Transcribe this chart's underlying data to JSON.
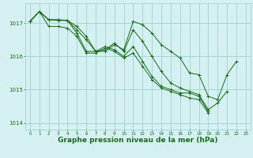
{
  "background_color": "#d4f0f0",
  "grid_color": "#a0d0d0",
  "line_color": "#1a6b1a",
  "marker_color": "#1a6b1a",
  "xlabel": "Graphe pression niveau de la mer (hPa)",
  "xlabel_fontsize": 6.5,
  "ylim": [
    1013.8,
    1017.6
  ],
  "xlim": [
    -0.5,
    23.5
  ],
  "yticks": [
    1014,
    1015,
    1016,
    1017
  ],
  "xticks": [
    0,
    1,
    2,
    3,
    4,
    5,
    6,
    7,
    8,
    9,
    10,
    11,
    12,
    13,
    14,
    15,
    16,
    17,
    18,
    19,
    20,
    21,
    22,
    23
  ],
  "series": [
    [
      1017.05,
      1017.35,
      1017.1,
      1017.1,
      1017.08,
      1016.9,
      1016.6,
      1016.15,
      1016.15,
      1016.35,
      1016.2,
      1017.05,
      1016.95,
      1016.7,
      1016.35,
      1016.15,
      1015.95,
      1015.5,
      1015.45,
      1014.8,
      1014.7,
      1015.45,
      1015.85,
      null
    ],
    [
      1017.05,
      1017.35,
      1017.1,
      1017.1,
      1017.08,
      1016.8,
      1016.5,
      1016.15,
      1016.2,
      1016.4,
      1016.15,
      1016.8,
      1016.45,
      1016.0,
      1015.55,
      1015.2,
      1015.05,
      1014.95,
      1014.85,
      1014.4,
      1014.6,
      1014.95,
      null,
      null
    ],
    [
      1017.05,
      1017.35,
      1017.1,
      1017.08,
      1017.08,
      1016.7,
      1016.15,
      1016.15,
      1016.3,
      1016.2,
      1016.0,
      1016.3,
      1015.85,
      1015.4,
      1015.1,
      1015.0,
      1014.9,
      1014.9,
      1014.8,
      1014.35,
      null,
      null,
      null,
      null
    ],
    [
      1017.05,
      1017.35,
      1016.9,
      1016.9,
      1016.85,
      1016.6,
      1016.1,
      1016.1,
      1016.25,
      1016.15,
      1015.95,
      1016.1,
      1015.7,
      1015.3,
      1015.05,
      1014.95,
      1014.85,
      1014.75,
      1014.7,
      1014.3,
      null,
      null,
      null,
      null
    ]
  ]
}
